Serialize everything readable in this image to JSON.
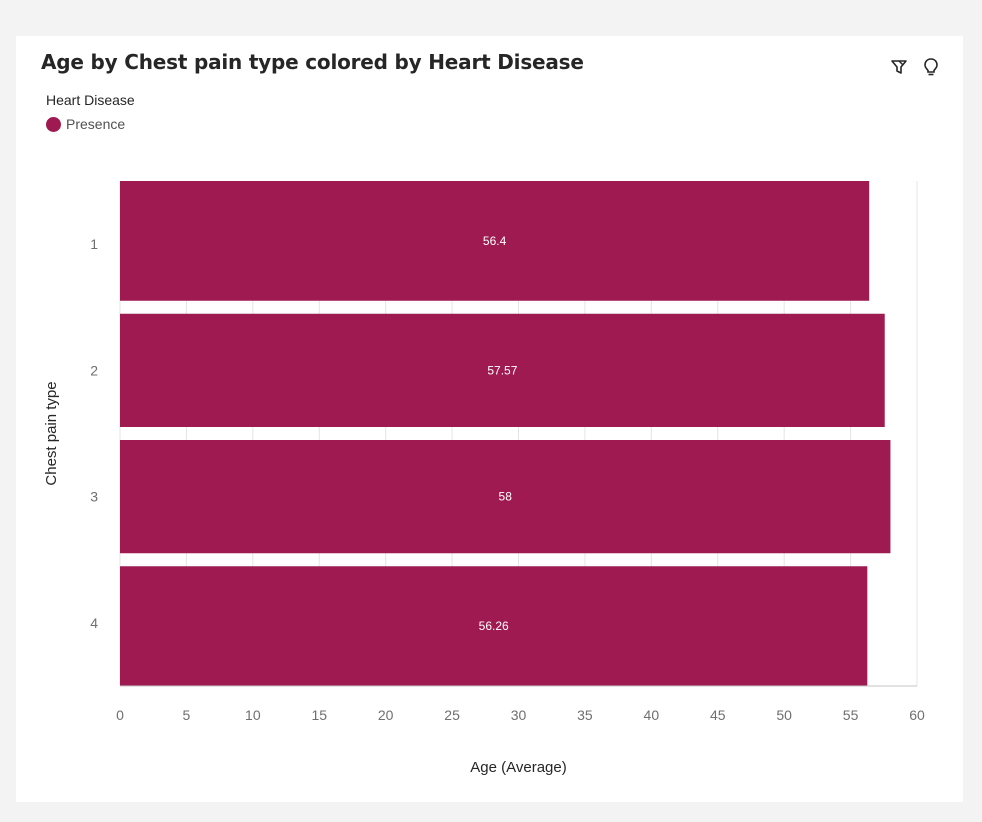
{
  "title": "Age by Chest pain type colored by Heart Disease",
  "icons": {
    "filter": "filter-icon",
    "insights": "lightbulb-icon"
  },
  "legend": {
    "title": "Heart Disease",
    "items": [
      {
        "label": "Presence",
        "color": "#9e1a51"
      }
    ]
  },
  "chart_data": {
    "type": "bar",
    "orientation": "horizontal",
    "categories": [
      "1",
      "2",
      "3",
      "4"
    ],
    "series": [
      {
        "name": "Presence",
        "values": [
          56.4,
          57.57,
          58,
          56.26
        ]
      }
    ],
    "data_labels": [
      "56.4",
      "57.57",
      "58",
      "56.26"
    ],
    "xlabel": "Age (Average)",
    "ylabel": "Chest pain type",
    "xlim": [
      0,
      60
    ],
    "xticks": [
      0,
      5,
      10,
      15,
      20,
      25,
      30,
      35,
      40,
      45,
      50,
      55,
      60
    ],
    "grid": true,
    "legend_position": "top-left",
    "bar_color": "#9e1a51"
  }
}
